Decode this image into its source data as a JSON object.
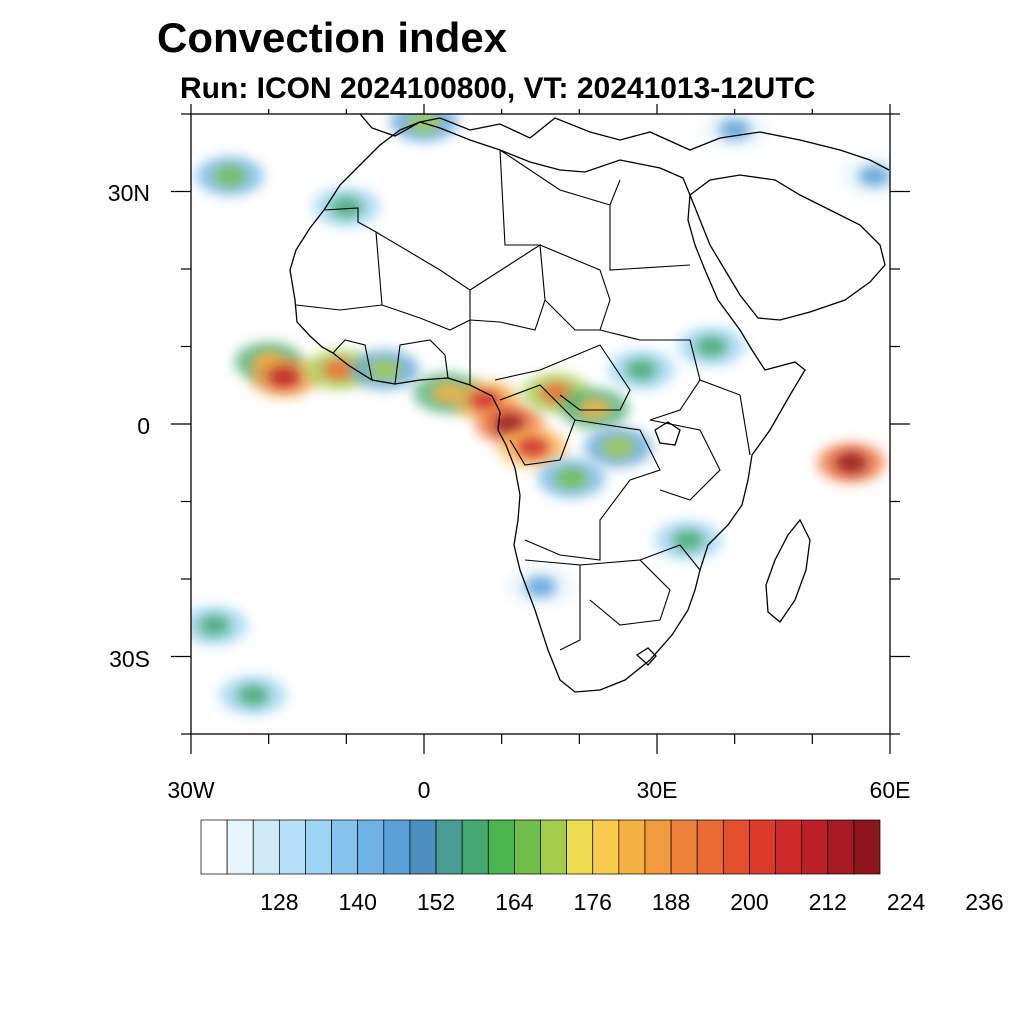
{
  "title": "Convection index",
  "subtitle": "Run: ICON 2024100800,  VT: 20241013-12UTC",
  "y_axis_labels": [
    "30N",
    "0",
    "30S"
  ],
  "x_axis_labels": [
    "30W",
    "0",
    "30E",
    "60E"
  ],
  "colorbar": {
    "labels": [
      "128",
      "140",
      "152",
      "164",
      "176",
      "188",
      "200",
      "212",
      "224",
      "236"
    ],
    "colors": [
      "#ffffff",
      "#e8f4fb",
      "#cfe9f7",
      "#b6def6",
      "#9dd3f3",
      "#86c3ec",
      "#70b2e3",
      "#5aa0d8",
      "#4a8fbe",
      "#4a9d94",
      "#45a870",
      "#4ab44e",
      "#70bd4c",
      "#a3cc4a",
      "#ecde4e",
      "#f8cb4c",
      "#f5b144",
      "#f29a3e",
      "#ef823a",
      "#ec6a33",
      "#e5502c",
      "#dd3b2a",
      "#cf2a2a",
      "#bd1f26",
      "#a81a22",
      "#8e151c"
    ]
  },
  "convection_cells": [
    {
      "lon": -25,
      "lat": 32,
      "value": 160
    },
    {
      "lon": -20,
      "lat": 8,
      "value": 176
    },
    {
      "lon": -18,
      "lat": 6,
      "value": 204
    },
    {
      "lon": -11,
      "lat": 7,
      "value": 188
    },
    {
      "lon": -5,
      "lat": 7,
      "value": 164
    },
    {
      "lon": 3,
      "lat": 4,
      "value": 176
    },
    {
      "lon": 8,
      "lat": 3,
      "value": 200
    },
    {
      "lon": 11,
      "lat": 0,
      "value": 212
    },
    {
      "lon": 14,
      "lat": -3,
      "value": 200
    },
    {
      "lon": 17,
      "lat": 4,
      "value": 188
    },
    {
      "lon": 22,
      "lat": 2,
      "value": 176
    },
    {
      "lon": 25,
      "lat": -3,
      "value": 164
    },
    {
      "lon": 19,
      "lat": -7,
      "value": 160
    },
    {
      "lon": 28,
      "lat": 7,
      "value": 152
    },
    {
      "lon": 37,
      "lat": 10,
      "value": 152
    },
    {
      "lon": 55,
      "lat": -5,
      "value": 212
    },
    {
      "lon": 34,
      "lat": -15,
      "value": 152
    },
    {
      "lon": 15,
      "lat": -21,
      "value": 140
    },
    {
      "lon": -27,
      "lat": -26,
      "value": 152
    },
    {
      "lon": -22,
      "lat": -35,
      "value": 152
    },
    {
      "lon": -10,
      "lat": 28,
      "value": 152
    },
    {
      "lon": 0,
      "lat": 39,
      "value": 164
    },
    {
      "lon": 40,
      "lat": 38,
      "value": 140
    },
    {
      "lon": 58,
      "lat": 32,
      "value": 140
    }
  ]
}
